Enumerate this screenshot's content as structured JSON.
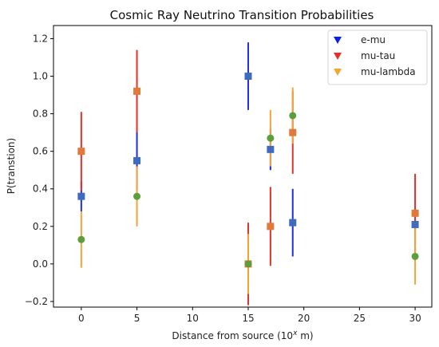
{
  "chart_data": {
    "type": "scatter",
    "title": "Cosmic Ray Neutrino Transition Probabilities",
    "xlabel_main": "Distance from source (10",
    "xlabel_sup": "x",
    "xlabel_tail": " m)",
    "ylabel": "P(transtion)",
    "xlim": [
      -2.5,
      31.5
    ],
    "ylim": [
      -0.23,
      1.27
    ],
    "xticks": [
      0,
      5,
      10,
      15,
      20,
      25,
      30
    ],
    "yticks": [
      -0.2,
      0.0,
      0.2,
      0.4,
      0.6,
      0.8,
      1.0,
      1.2
    ],
    "ytick_labels": [
      "−0.2",
      "0.0",
      "0.2",
      "0.4",
      "0.6",
      "0.8",
      "1.0",
      "1.2"
    ],
    "legend_position": "top-right",
    "series": [
      {
        "name": "e-mu",
        "color": "#1f2de0",
        "legend_marker_color": "#0b1fe6",
        "point_color": "#3f6bbf",
        "marker": "square",
        "x": [
          0,
          5,
          15,
          17,
          19,
          30
        ],
        "y": [
          0.36,
          0.55,
          1.0,
          0.61,
          0.22,
          0.21
        ],
        "err": [
          0.08,
          0.16,
          0.18,
          0.11,
          0.18,
          0.03
        ]
      },
      {
        "name": "mu-tau",
        "color": "#e0312a",
        "legend_marker_color": "#e0312a",
        "point_color": "#e07a3a",
        "marker": "square",
        "x": [
          0,
          5,
          15,
          17,
          19,
          30
        ],
        "y": [
          0.6,
          0.92,
          0.0,
          0.2,
          0.7,
          0.27
        ],
        "err": [
          0.21,
          0.22,
          0.22,
          0.21,
          0.22,
          0.21
        ]
      },
      {
        "name": "mu-lambda",
        "color": "#f2a43a",
        "legend_marker_color": "#f0a830",
        "point_color": "#5c9e3c",
        "marker": "circle",
        "x": [
          0,
          5,
          15,
          17,
          19,
          30
        ],
        "y": [
          0.13,
          0.36,
          0.0,
          0.67,
          0.79,
          0.04
        ],
        "err": [
          0.15,
          0.16,
          0.16,
          0.15,
          0.15,
          0.15
        ]
      }
    ]
  }
}
